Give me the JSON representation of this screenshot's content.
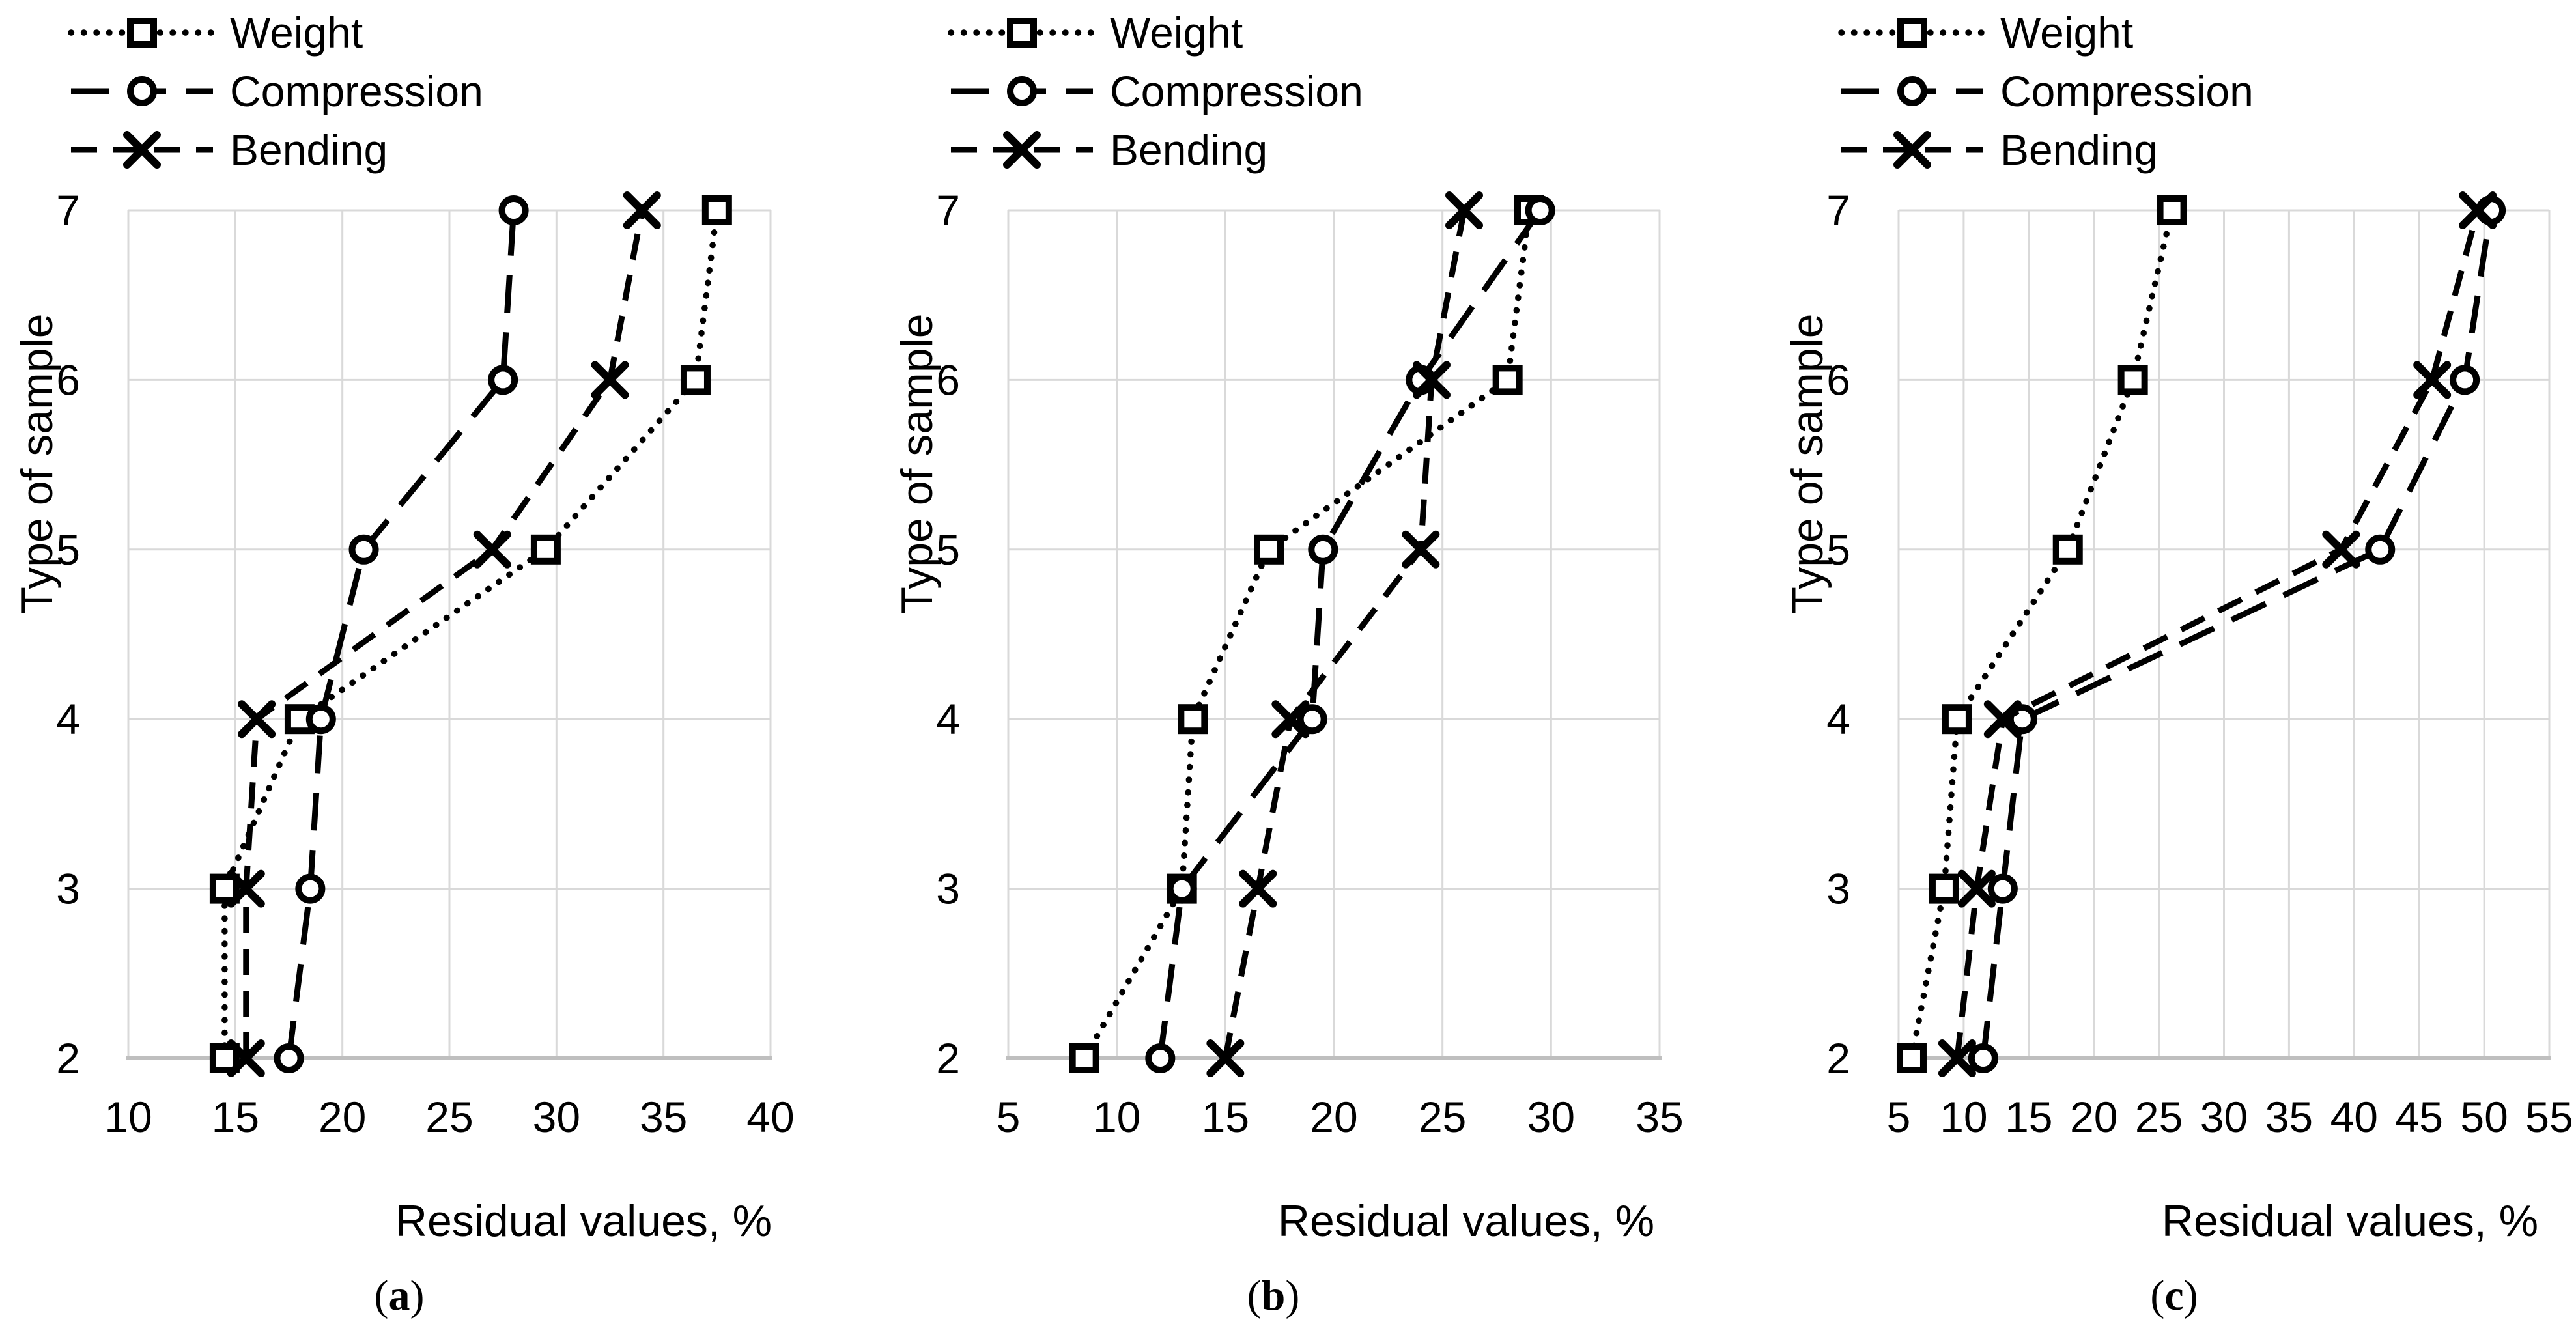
{
  "figure": {
    "background": "#ffffff"
  },
  "style": {
    "series_color": "#000000",
    "gridline_color": "#d9d9d9",
    "axis_line_color": "#bfbfbf",
    "text_color": "#000000"
  },
  "legend_items": [
    {
      "label": "Weight",
      "marker": "square",
      "line_style": "dotted"
    },
    {
      "label": "Compression",
      "marker": "circle",
      "line_style": "long_dash"
    },
    {
      "label": "Bending",
      "marker": "x",
      "line_style": "dash"
    }
  ],
  "chart_data": [
    {
      "id": "a",
      "type": "line",
      "caption_open": "(",
      "caption_letter": "a",
      "caption_close": ")",
      "xlabel": "Residual values, %",
      "ylabel": "Type of sample",
      "xlim": [
        10,
        40
      ],
      "x_ticks": [
        10,
        15,
        20,
        25,
        30,
        35,
        40
      ],
      "ylim": [
        2,
        7
      ],
      "y_ticks": [
        2,
        3,
        4,
        5,
        6,
        7
      ],
      "samples": [
        2,
        3,
        4,
        5,
        6,
        7
      ],
      "grid": true,
      "legend_position": "top-left",
      "series": [
        {
          "name": "Weight",
          "marker": "square",
          "line_style": "dotted",
          "values": [
            14.5,
            14.5,
            18,
            29.5,
            36.5,
            37.5
          ]
        },
        {
          "name": "Compression",
          "marker": "circle",
          "line_style": "long_dash",
          "values": [
            17.5,
            18.5,
            19,
            21,
            27.5,
            28
          ]
        },
        {
          "name": "Bending",
          "marker": "x",
          "line_style": "dash",
          "values": [
            15.5,
            15.5,
            16,
            27,
            32.5,
            34
          ]
        }
      ]
    },
    {
      "id": "b",
      "type": "line",
      "caption_open": "(",
      "caption_letter": "b",
      "caption_close": ")",
      "xlabel": "Residual values, %",
      "ylabel": "Type of sample",
      "xlim": [
        5,
        35
      ],
      "x_ticks": [
        5,
        10,
        15,
        20,
        25,
        30,
        35
      ],
      "ylim": [
        2,
        7
      ],
      "y_ticks": [
        2,
        3,
        4,
        5,
        6,
        7
      ],
      "samples": [
        2,
        3,
        4,
        5,
        6,
        7
      ],
      "grid": true,
      "legend_position": "top-left",
      "series": [
        {
          "name": "Weight",
          "marker": "square",
          "line_style": "dotted",
          "values": [
            8.5,
            13,
            13.5,
            17,
            28,
            29
          ]
        },
        {
          "name": "Compression",
          "marker": "circle",
          "line_style": "long_dash",
          "values": [
            12,
            13,
            19,
            19.5,
            24,
            29.5
          ]
        },
        {
          "name": "Bending",
          "marker": "x",
          "line_style": "dash",
          "values": [
            15,
            16.5,
            18,
            24,
            24.5,
            26
          ]
        }
      ]
    },
    {
      "id": "c",
      "type": "line",
      "caption_open": "(",
      "caption_letter": "c",
      "caption_close": ")",
      "xlabel": "Residual values, %",
      "ylabel": "Type of sample",
      "xlim": [
        5,
        55
      ],
      "x_ticks": [
        5,
        10,
        15,
        20,
        25,
        30,
        35,
        40,
        45,
        50,
        55
      ],
      "ylim": [
        2,
        7
      ],
      "y_ticks": [
        2,
        3,
        4,
        5,
        6,
        7
      ],
      "samples": [
        2,
        3,
        4,
        5,
        6,
        7
      ],
      "grid": true,
      "legend_position": "top-left",
      "series": [
        {
          "name": "Weight",
          "marker": "square",
          "line_style": "dotted",
          "values": [
            6,
            8.5,
            9.5,
            18,
            23,
            26
          ]
        },
        {
          "name": "Compression",
          "marker": "circle",
          "line_style": "long_dash",
          "values": [
            11.5,
            13,
            14.5,
            42,
            48.5,
            50.5
          ]
        },
        {
          "name": "Bending",
          "marker": "x",
          "line_style": "dash",
          "values": [
            9.5,
            11,
            13,
            39,
            46,
            49.5
          ]
        }
      ]
    }
  ]
}
